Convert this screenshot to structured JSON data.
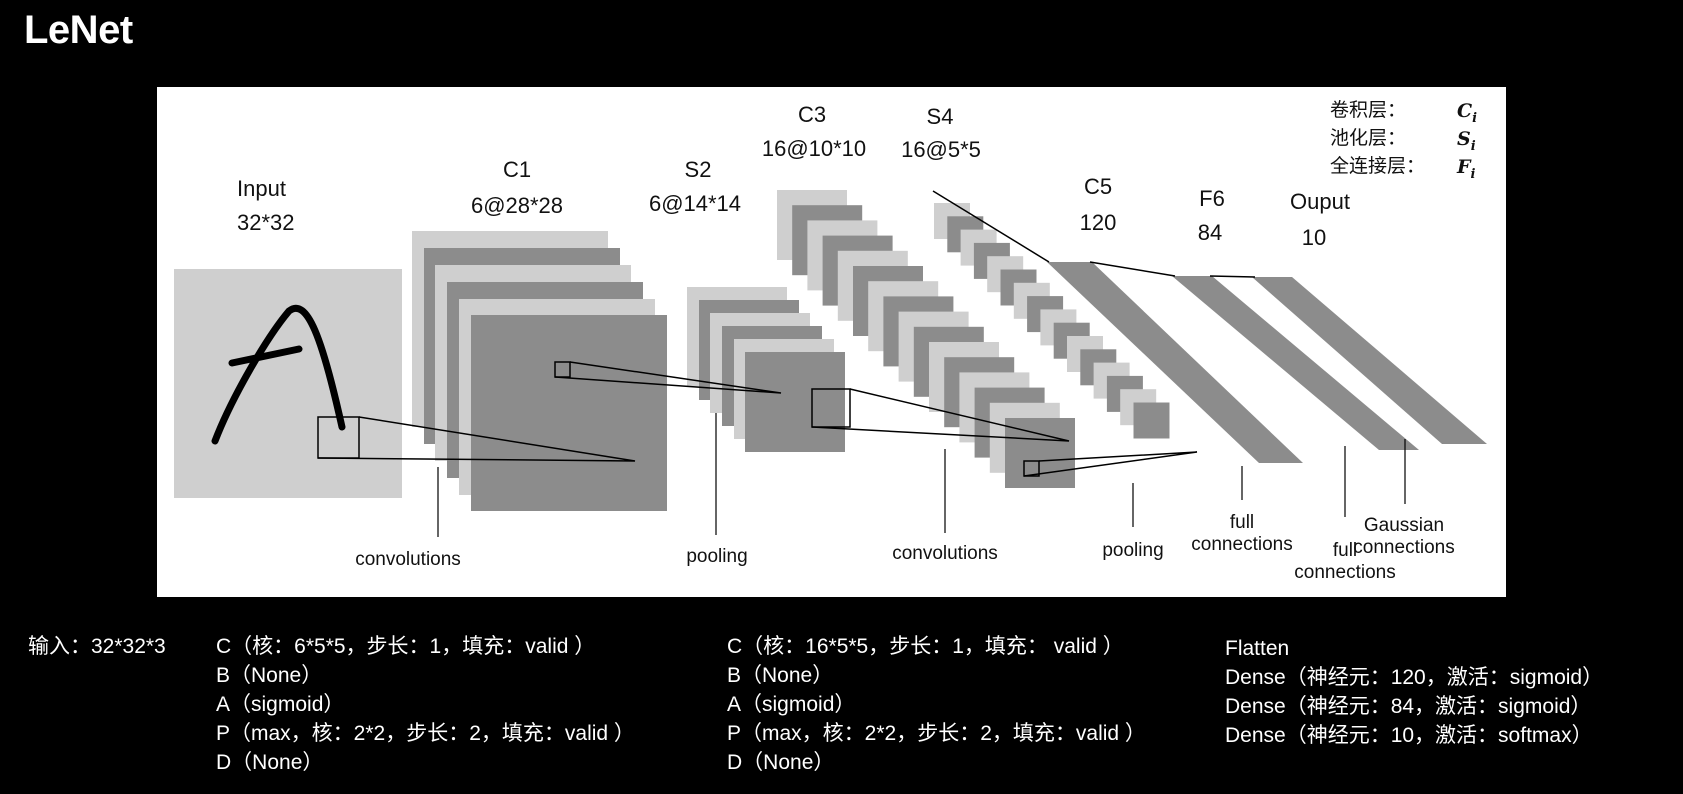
{
  "title": "LeNet",
  "figure": {
    "layers": {
      "input": {
        "name": "Input",
        "size": "32*32"
      },
      "c1": {
        "name": "C1",
        "size": "6@28*28"
      },
      "s2": {
        "name": "S2",
        "size": "6@14*14"
      },
      "c3": {
        "name": "C3",
        "size": "16@10*10"
      },
      "s4": {
        "name": "S4",
        "size": "16@5*5"
      },
      "c5": {
        "name": "C5",
        "size": "120"
      },
      "f6": {
        "name": "F6",
        "size": "84"
      },
      "output": {
        "name": "Ouput",
        "size": "10"
      }
    },
    "operations": {
      "conv1": "convolutions",
      "pool1": "pooling",
      "conv2": "convolutions",
      "pool2": "pooling",
      "full1_line1": "full",
      "full1_line2": "connections",
      "full2_line1": "full",
      "full2_line2": "connections",
      "gauss_line1": "Gaussian",
      "gauss_line2": "connections"
    },
    "legend": [
      {
        "label": "卷积层：",
        "symbol": "C",
        "sub": "i"
      },
      {
        "label": "池化层：",
        "symbol": "S",
        "sub": "i"
      },
      {
        "label": "全连接层：",
        "symbol": "F",
        "sub": "i"
      }
    ]
  },
  "annotations": {
    "input": "输入：32*32*3",
    "block1": [
      "C（核：6*5*5，步长：1，填充：valid ）",
      "B（None）",
      "A（sigmoid）",
      "P（max，核：2*2，步长：2，填充：valid ）",
      "D（None）"
    ],
    "block2": [
      "C（核：16*5*5，步长：1，填充： valid ）",
      "B（None）",
      "A（sigmoid）",
      "P（max，核：2*2，步长：2，填充：valid ）",
      "D（None）"
    ],
    "block3": [
      "Flatten",
      "Dense（神经元：120，激活：sigmoid）",
      "Dense（神经元：84，激活：sigmoid）",
      "Dense（神经元：10，激活：softmax）"
    ]
  }
}
